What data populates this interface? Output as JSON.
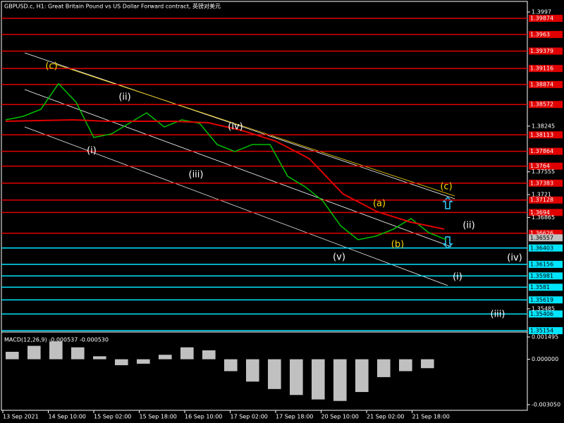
{
  "header": {
    "title": "GBPUSD.c, H1:  Great Britain Pound vs US Dollar Forward contract, 英镑对美元"
  },
  "price_axis": {
    "min": 1.35154,
    "max": 1.3997,
    "ticks": [
      1.3997,
      1.38245,
      1.37555,
      1.3721,
      1.36865,
      1.35485
    ],
    "current": 1.36557
  },
  "levels": {
    "red": [
      1.39874,
      1.3963,
      1.39379,
      1.39116,
      1.38874,
      1.38572,
      1.38113,
      1.37864,
      1.3764,
      1.37383,
      1.37128,
      1.3694,
      1.36626
    ],
    "cyan": [
      1.36403,
      1.36156,
      1.35981,
      1.3581,
      1.35619,
      1.35406,
      1.35154
    ]
  },
  "price": {
    "closes": [
      1.3834,
      1.38393,
      1.385,
      1.38886,
      1.38606,
      1.38073,
      1.38127,
      1.38287,
      1.38446,
      1.38233,
      1.3834,
      1.38287,
      1.37967,
      1.37861,
      1.37967,
      1.37967,
      1.37487,
      1.37327,
      1.37114,
      1.36741,
      1.36528,
      1.36582,
      1.36688,
      1.36848,
      1.36635,
      1.36528
    ],
    "ma": [
      1.38318,
      1.38329,
      1.3834,
      1.38318,
      1.38318,
      1.38318,
      1.38297,
      1.3818,
      1.3802,
      1.37754,
      1.37221,
      1.36955,
      1.36795,
      1.36688
    ]
  },
  "waves": [
    {
      "label": "(c)",
      "color": "#ffd700"
    },
    {
      "label": "(ii)",
      "color": "#fff"
    },
    {
      "label": "(i)",
      "color": "#fff"
    },
    {
      "label": "(iii)",
      "color": "#fff"
    },
    {
      "label": "(iv)",
      "color": "#fff"
    },
    {
      "label": "(v)",
      "color": "#fff"
    },
    {
      "label": "(a)",
      "color": "#ffd700"
    },
    {
      "label": "(b)",
      "color": "#ffd700"
    },
    {
      "label": "(c)",
      "color": "#ffd700"
    },
    {
      "label": "(ii)",
      "color": "#fff"
    },
    {
      "label": "(iv)",
      "color": "#fff"
    },
    {
      "label": "(i)",
      "color": "#fff"
    },
    {
      "label": "(iii)",
      "color": "#fff"
    }
  ],
  "macd": {
    "label": "MACD(12,26,9) -0.000537 -0.000530",
    "min": -0.00305,
    "max": 0.001495,
    "ticks": [
      {
        "value": 0.001495,
        "label": "0.001495"
      },
      {
        "value": 0,
        "label": "0.000000"
      },
      {
        "value": -0.00305,
        "label": "-0.003050"
      }
    ],
    "values": [
      0.0005,
      0.0009,
      0.0012,
      0.0008,
      0.0002,
      -0.0004,
      -0.0003,
      0.0003,
      0.0008,
      0.0006,
      -0.0008,
      -0.0015,
      -0.002,
      -0.0024,
      -0.0027,
      -0.0028,
      -0.0022,
      -0.0012,
      -0.0008,
      -0.0006
    ]
  },
  "time_axis": [
    "13 Sep 2021",
    "14 Sep 10:00",
    "15 Sep 02:00",
    "15 Sep 18:00",
    "16 Sep 10:00",
    "17 Sep 02:00",
    "17 Sep 18:00",
    "20 Sep 10:00",
    "21 Sep 02:00",
    "21 Sep 18:00"
  ]
}
